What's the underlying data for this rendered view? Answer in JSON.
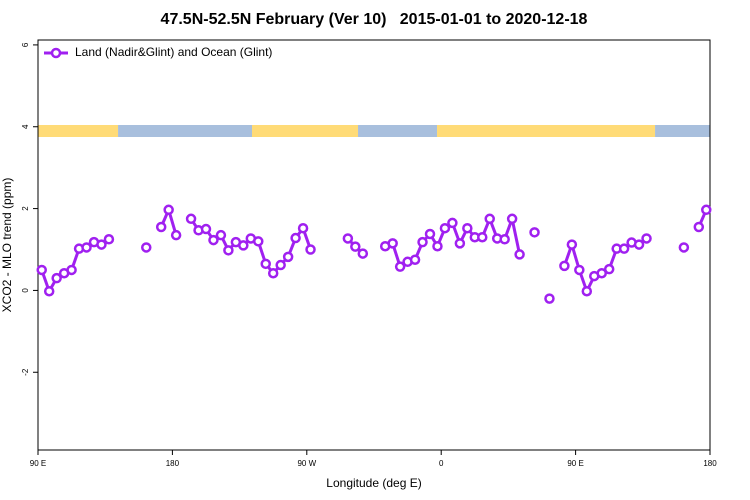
{
  "chart_data": {
    "type": "line",
    "title": "47.5N-52.5N February (Ver 10)   2015-01-01 to 2020-12-18",
    "xlabel": "Longitude (deg E)",
    "ylabel": "XCO2 - MLO trend (ppm)",
    "xlim": [
      90,
      540
    ],
    "xticks": [
      {
        "value": 90,
        "label": "90 E"
      },
      180,
      {
        "value": 270,
        "label": "90 W"
      },
      {
        "value": 360,
        "label": "0"
      },
      {
        "value": 450,
        "label": "90 E"
      },
      {
        "value": 540,
        "label": "180"
      }
    ],
    "ylim": [
      -3.9,
      6.12
    ],
    "yticks": [
      -2,
      0,
      2,
      4,
      6
    ],
    "legend": "top-left",
    "surface_band": [
      {
        "start": 90,
        "end": 143.6,
        "color": "#ffdb77"
      },
      {
        "start": 143.6,
        "end": 233.3,
        "color": "#a8bfdd"
      },
      {
        "start": 233.3,
        "end": 304.3,
        "color": "#ffdb77"
      },
      {
        "start": 304.3,
        "end": 357.2,
        "color": "#a8bfdd"
      },
      {
        "start": 357.2,
        "end": 503.2,
        "color": "#ffdb77"
      },
      {
        "start": 503.2,
        "end": 540,
        "color": "#a8bfdd"
      }
    ],
    "x": [
      92.5,
      97.5,
      102.5,
      107.5,
      112.5,
      117.5,
      122.5,
      127.5,
      132.5,
      137.5,
      142.5,
      147.5,
      152.5,
      157.5,
      162.5,
      167.5,
      172.5,
      177.5,
      182.5,
      187.5,
      192.5,
      197.5,
      202.5,
      207.5,
      212.5,
      217.5,
      222.5,
      227.5,
      232.5,
      237.5,
      242.5,
      247.5,
      252.5,
      257.5,
      262.5,
      267.5,
      272.5,
      277.5,
      282.5,
      287.5,
      292.5,
      297.5,
      302.5,
      307.5,
      312.5,
      317.5,
      322.5,
      327.5,
      332.5,
      337.5,
      342.5,
      347.5,
      352.5,
      357.5,
      362.5,
      367.5,
      372.5,
      377.5,
      382.5,
      387.5,
      392.5,
      397.5,
      402.5,
      407.5,
      412.5,
      417.5,
      422.5,
      427.5,
      432.5,
      437.5,
      442.5,
      447.5,
      452.5,
      457.5,
      462.5,
      467.5,
      472.5,
      477.5,
      482.5,
      487.5,
      492.5,
      497.5,
      502.5,
      507.5,
      512.5,
      517.5,
      522.5,
      527.5,
      532.5,
      537.5
    ],
    "series": [
      {
        "name": "Land (Nadir&Glint) and Ocean (Glint)",
        "color": "#a020f0",
        "values": [
          0.5,
          -0.02,
          0.3,
          0.42,
          0.5,
          1.02,
          1.05,
          1.18,
          1.12,
          1.25,
          null,
          null,
          null,
          null,
          1.05,
          null,
          1.55,
          1.97,
          1.35,
          null,
          1.75,
          1.47,
          1.5,
          1.23,
          1.35,
          0.98,
          1.18,
          1.1,
          1.27,
          1.2,
          0.65,
          0.42,
          0.62,
          0.82,
          1.28,
          1.52,
          1.0,
          null,
          null,
          null,
          null,
          1.27,
          1.07,
          0.9,
          null,
          null,
          1.08,
          1.15,
          0.58,
          0.7,
          0.75,
          1.18,
          1.38,
          1.08,
          1.52,
          1.65,
          1.15,
          1.52,
          1.3,
          1.3,
          1.75,
          1.27,
          1.25,
          1.75,
          0.88,
          null,
          1.42,
          null,
          -0.2,
          null,
          0.6,
          1.12,
          0.5,
          -0.02,
          0.35,
          0.42,
          0.52,
          1.02,
          1.02,
          1.17,
          1.12,
          1.27,
          null,
          null,
          null,
          null,
          1.05,
          null,
          1.55,
          1.97
        ]
      }
    ]
  }
}
